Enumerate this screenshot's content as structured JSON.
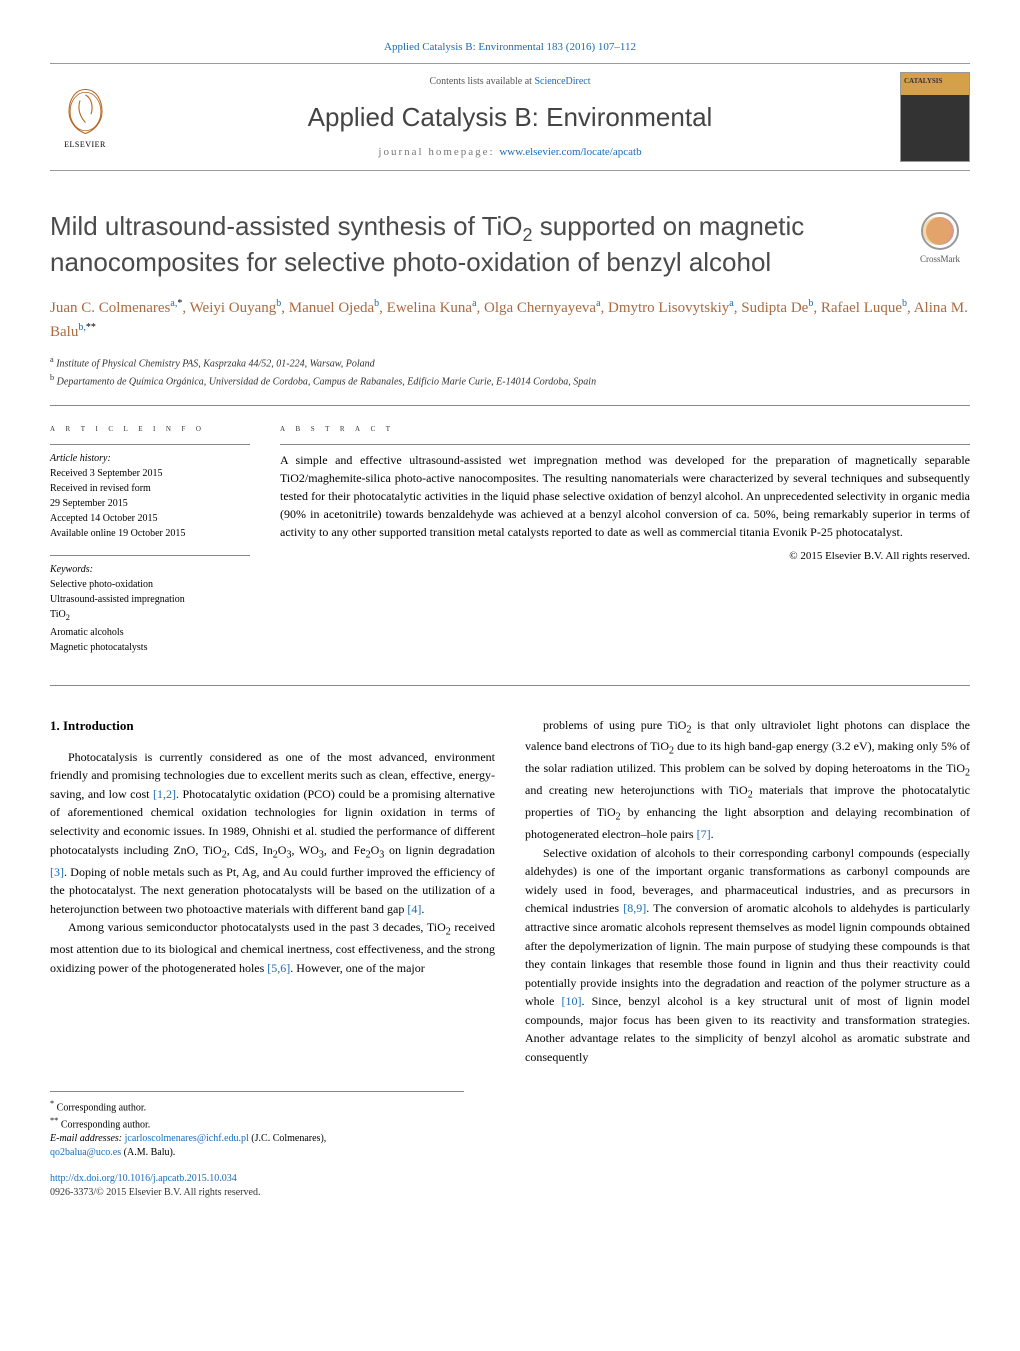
{
  "header": {
    "citation_link": "Applied Catalysis B: Environmental 183 (2016) 107–112",
    "contents_prefix": "Contents lists available at ",
    "contents_link": "ScienceDirect",
    "journal_name": "Applied Catalysis B: Environmental",
    "homepage_prefix": "journal homepage: ",
    "homepage_link": "www.elsevier.com/locate/apcatb",
    "publisher_name": "ELSEVIER",
    "cover_label": "CATALYSIS"
  },
  "crossmark_label": "CrossMark",
  "title_parts": {
    "pre": "Mild ultrasound-assisted synthesis of TiO",
    "sub": "2",
    "post": " supported on magnetic nanocomposites for selective photo-oxidation of benzyl alcohol"
  },
  "authors_html": "Juan C. Colmenares|a,*|, Weiyi Ouyang|b|, Manuel Ojeda|b|, Ewelina Kuna|a|, Olga Chernyayeva|a|, Dmytro Lisovytskiy|a|, Sudipta De|b|, Rafael Luque|b|, Alina M. Balu|b,**|",
  "affiliations": [
    {
      "sup": "a",
      "text": "Institute of Physical Chemistry PAS, Kasprzaka 44/52, 01-224, Warsaw, Poland"
    },
    {
      "sup": "b",
      "text": "Departamento de Química Orgánica, Universidad de Cordoba, Campus de Rabanales, Edificio Marie Curie, E-14014 Cordoba, Spain"
    }
  ],
  "article_info": {
    "section_label": "a r t i c l e   i n f o",
    "history_label": "Article history:",
    "history": [
      "Received 3 September 2015",
      "Received in revised form",
      "29 September 2015",
      "Accepted 14 October 2015",
      "Available online 19 October 2015"
    ],
    "keywords_label": "Keywords:",
    "keywords": [
      "Selective photo-oxidation",
      "Ultrasound-assisted impregnation",
      "TiO2",
      "Aromatic alcohols",
      "Magnetic photocatalysts"
    ]
  },
  "abstract": {
    "section_label": "a b s t r a c t",
    "text": "A simple and effective ultrasound-assisted wet impregnation method was developed for the preparation of magnetically separable TiO2/maghemite-silica photo-active nanocomposites. The resulting nanomaterials were characterized by several techniques and subsequently tested for their photocatalytic activities in the liquid phase selective oxidation of benzyl alcohol. An unprecedented selectivity in organic media (90% in acetonitrile) towards benzaldehyde was achieved at a benzyl alcohol conversion of ca. 50%, being remarkably superior in terms of activity to any other supported transition metal catalysts reported to date as well as commercial titania Evonik P-25 photocatalyst.",
    "copyright": "© 2015 Elsevier B.V. All rights reserved."
  },
  "body": {
    "section_heading": "1. Introduction",
    "left_paras": [
      "Photocatalysis is currently considered as one of the most advanced, environment friendly and promising technologies due to excellent merits such as clean, effective, energy-saving, and low cost [1,2]. Photocatalytic oxidation (PCO) could be a promising alternative of aforementioned chemical oxidation technologies for lignin oxidation in terms of selectivity and economic issues. In 1989, Ohnishi et al. studied the performance of different photocatalysts including ZnO, TiO2, CdS, In2O3, WO3, and Fe2O3 on lignin degradation [3]. Doping of noble metals such as Pt, Ag, and Au could further improved the efficiency of the photocatalyst. The next generation photocatalysts will be based on the utilization of a heterojunction between two photoactive materials with different band gap [4].",
      "Among various semiconductor photocatalysts used in the past 3 decades, TiO2 received most attention due to its biological and chemical inertness, cost effectiveness, and the strong oxidizing power of the photogenerated holes [5,6]. However, one of the major"
    ],
    "right_paras": [
      "problems of using pure TiO2 is that only ultraviolet light photons can displace the valence band electrons of TiO2 due to its high band-gap energy (3.2 eV), making only 5% of the solar radiation utilized. This problem can be solved by doping heteroatoms in the TiO2 and creating new heterojunctions with TiO2 materials that improve the photocatalytic properties of TiO2 by enhancing the light absorption and delaying recombination of photogenerated electron–hole pairs [7].",
      "Selective oxidation of alcohols to their corresponding carbonyl compounds (especially aldehydes) is one of the important organic transformations as carbonyl compounds are widely used in food, beverages, and pharmaceutical industries, and as precursors in chemical industries [8,9]. The conversion of aromatic alcohols to aldehydes is particularly attractive since aromatic alcohols represent themselves as model lignin compounds obtained after the depolymerization of lignin. The main purpose of studying these compounds is that they contain linkages that resemble those found in lignin and thus their reactivity could potentially provide insights into the degradation and reaction of the polymer structure as a whole [10]. Since, benzyl alcohol is a key structural unit of most of lignin model compounds, major focus has been given to its reactivity and transformation strategies. Another advantage relates to the simplicity of benzyl alcohol as aromatic substrate and consequently"
    ],
    "left_refs": {
      "[1,2]": true,
      "[3]": true,
      "[4]": true,
      "[5,6]": true
    },
    "right_refs": {
      "[7]": true,
      "[8,9]": true,
      "[10]": true
    }
  },
  "footnotes": {
    "corr1": "Corresponding author.",
    "corr2": "Corresponding author.",
    "email_label": "E-mail addresses: ",
    "email1": "jcarloscolmenares@ichf.edu.pl",
    "email1_name": " (J.C. Colmenares), ",
    "email2": "qo2balua@uco.es",
    "email2_name": " (A.M. Balu)."
  },
  "bottom": {
    "doi": "http://dx.doi.org/10.1016/j.apcatb.2015.10.034",
    "issn_line": "0926-3373/© 2015 Elsevier B.V. All rights reserved."
  },
  "colors": {
    "link": "#1a6bb5",
    "author": "#ad6a3e",
    "title": "#4a4a4a",
    "rule": "#888888"
  }
}
